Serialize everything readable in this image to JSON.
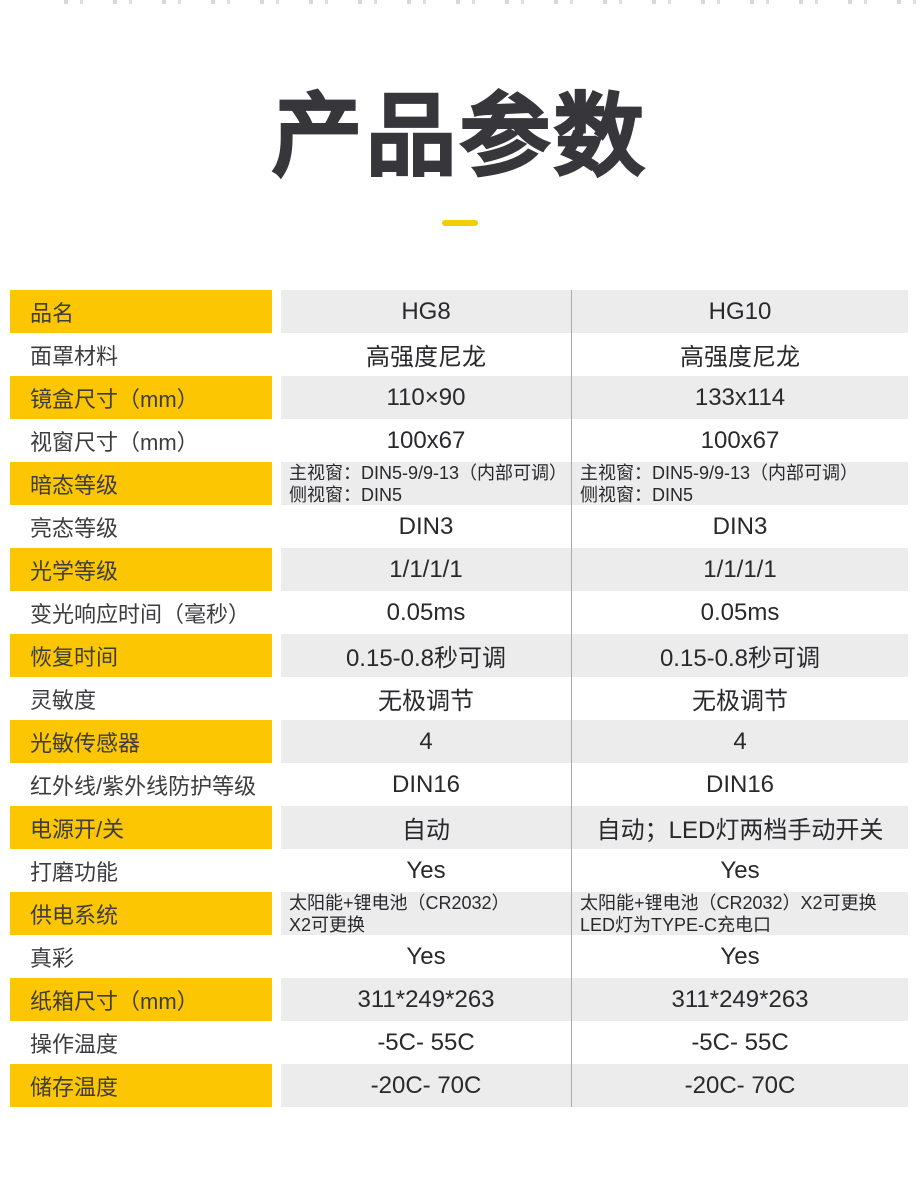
{
  "page": {
    "title": "产品参数"
  },
  "colors": {
    "accent_yellow": "#fcc702",
    "dash_yellow": "#f2cf02",
    "row_gray": "#ececec",
    "divider_gray": "#a9a9ad",
    "title_color": "#36363b"
  },
  "table": {
    "products": [
      "HG8",
      "HG10"
    ],
    "rows": [
      {
        "label": "品名",
        "hg8": "HG8",
        "hg10": "HG10"
      },
      {
        "label": "面罩材料",
        "hg8": "高强度尼龙",
        "hg10": "高强度尼龙"
      },
      {
        "label": "镜盒尺寸（mm）",
        "hg8": "110×90",
        "hg10": "133x114"
      },
      {
        "label": "视窗尺寸（mm）",
        "hg8": "100x67",
        "hg10": "100x67"
      },
      {
        "label": "暗态等级",
        "hg8": [
          "主视窗：DIN5-9/9-13（内部可调）",
          "侧视窗：DIN5"
        ],
        "hg10": [
          "主视窗：DIN5-9/9-13（内部可调）",
          "侧视窗：DIN5"
        ]
      },
      {
        "label": "亮态等级",
        "hg8": "DIN3",
        "hg10": "DIN3"
      },
      {
        "label": "光学等级",
        "hg8": "1/1/1/1",
        "hg10": "1/1/1/1"
      },
      {
        "label": "变光响应时间（毫秒）",
        "hg8": "0.05ms",
        "hg10": "0.05ms"
      },
      {
        "label": "恢复时间",
        "hg8": "0.15-0.8秒可调",
        "hg10": "0.15-0.8秒可调"
      },
      {
        "label": "灵敏度",
        "hg8": "无极调节",
        "hg10": "无极调节"
      },
      {
        "label": "光敏传感器",
        "hg8": "4",
        "hg10": "4"
      },
      {
        "label": "红外线/紫外线防护等级",
        "hg8": "DIN16",
        "hg10": "DIN16"
      },
      {
        "label": "电源开/关",
        "hg8": "自动",
        "hg10": "自动；LED灯两档手动开关"
      },
      {
        "label": "打磨功能",
        "hg8": "Yes",
        "hg10": "Yes"
      },
      {
        "label": "供电系统",
        "hg8": [
          "太阳能+锂电池（CR2032）",
          "X2可更换"
        ],
        "hg10": [
          "太阳能+锂电池（CR2032）X2可更换",
          "LED灯为TYPE-C充电口"
        ]
      },
      {
        "label": "真彩",
        "hg8": "Yes",
        "hg10": "Yes"
      },
      {
        "label": "纸箱尺寸（mm）",
        "hg8": "311*249*263",
        "hg10": "311*249*263"
      },
      {
        "label": "操作温度",
        "hg8": "-5C- 55C",
        "hg10": "-5C- 55C"
      },
      {
        "label": "储存温度",
        "hg8": "-20C- 70C",
        "hg10": "-20C- 70C"
      }
    ]
  }
}
